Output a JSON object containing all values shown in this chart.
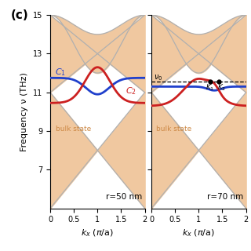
{
  "title": "(c)",
  "ylim": [
    5,
    15
  ],
  "xlim": [
    0,
    2
  ],
  "yticks": [
    7,
    9,
    11,
    13,
    15
  ],
  "xticks": [
    0,
    0.5,
    1,
    1.5,
    2
  ],
  "ylabel": "Frequency ν (THz)",
  "xlabel_latex": "$k_x$ ($\\pi$/a)",
  "panel1_label": "r=50 nm",
  "panel2_label": "r=70 nm",
  "bulk_color": "#f0c8a0",
  "blue_color": "#2040cc",
  "red_color": "#cc2020",
  "gray_color": "#b0b0b0",
  "gray_lw": 0.9,
  "edge_lw": 2.0,
  "v0": 11.55,
  "K1_x": 1.25,
  "K2_x": 1.42
}
